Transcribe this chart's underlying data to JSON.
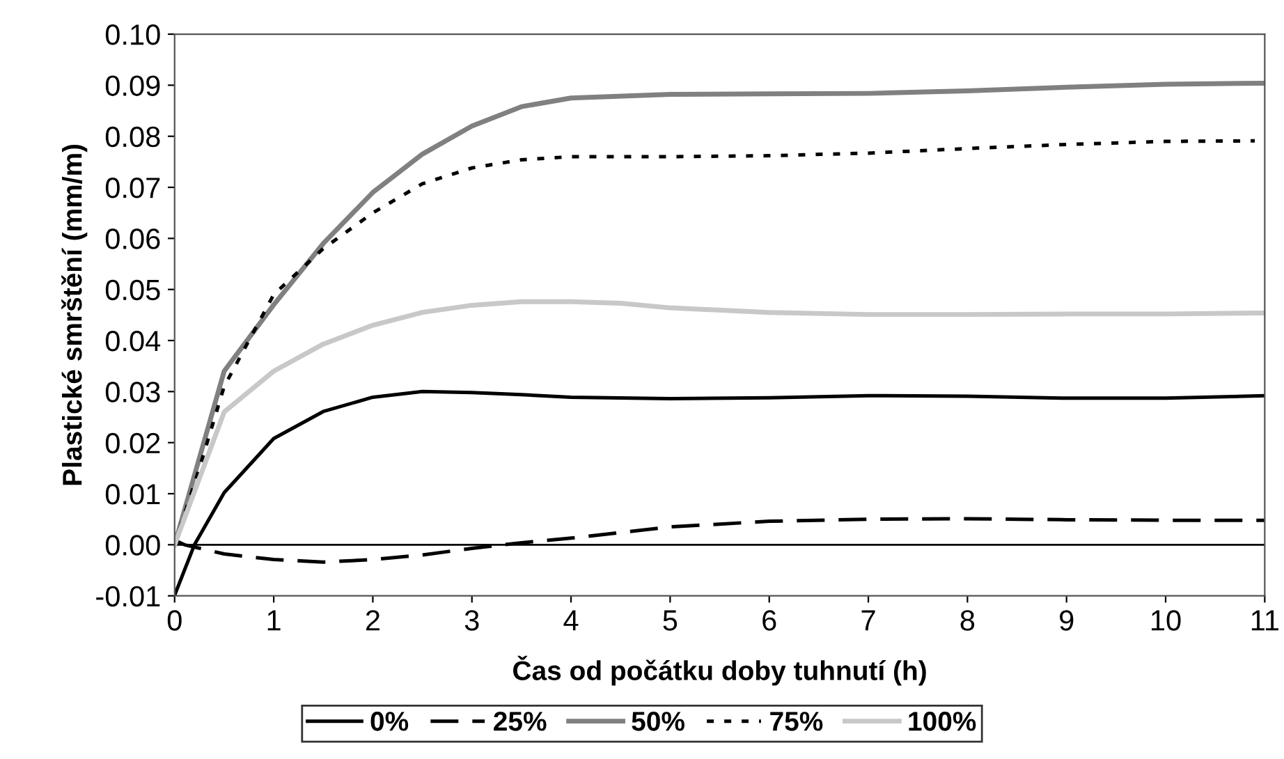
{
  "chart_data": {
    "type": "line",
    "xlabel": "Čas od počátku doby tuhnutí (h)",
    "ylabel": "Plastické smrštění (mm/m)",
    "xlim": [
      0,
      11
    ],
    "xticks": [
      0,
      1,
      2,
      3,
      4,
      5,
      6,
      7,
      8,
      9,
      10,
      11
    ],
    "ylim": [
      -0.01,
      0.1
    ],
    "yticks": [
      {
        "value": -0.01,
        "label": "-0.01"
      },
      {
        "value": 0,
        "label": "0.00"
      },
      {
        "value": 0.01,
        "label": "0.01"
      },
      {
        "value": 0.02,
        "label": "0.02"
      },
      {
        "value": 0.03,
        "label": "0.03"
      },
      {
        "value": 0.04,
        "label": "0.04"
      },
      {
        "value": 0.05,
        "label": "0.05"
      },
      {
        "value": 0.06,
        "label": "0.06"
      },
      {
        "value": 0.07,
        "label": "0.07"
      },
      {
        "value": 0.08,
        "label": "0.08"
      },
      {
        "value": 0.09,
        "label": "0.09"
      },
      {
        "value": 0.1,
        "label": "0.10"
      }
    ],
    "grid": false,
    "legend": "bottom",
    "marker": "none",
    "ref_lines": [
      {
        "axis": "y",
        "value": 0,
        "color": "#000000",
        "line_style": "solid"
      }
    ],
    "series": [
      {
        "name": "0%",
        "color": "#000000",
        "line_style": "solid",
        "x": [
          0,
          0.2,
          0.5,
          1,
          1.5,
          2,
          2.5,
          3,
          3.5,
          4,
          5,
          6,
          7,
          8,
          9,
          10,
          11
        ],
        "values": [
          -0.0099,
          0,
          0.0102,
          0.0208,
          0.0261,
          0.0289,
          0.03,
          0.0298,
          0.0294,
          0.0289,
          0.0286,
          0.0288,
          0.0292,
          0.0291,
          0.0287,
          0.0287,
          0.0292
        ]
      },
      {
        "name": "25%",
        "color": "#000000",
        "line_style": "dashed",
        "x": [
          0,
          0.1,
          0.5,
          1,
          1.5,
          2,
          2.5,
          3,
          3.5,
          4,
          5,
          6,
          7,
          8,
          9,
          10,
          11
        ],
        "values": [
          0.0009,
          0,
          -0.0018,
          -0.0029,
          -0.0034,
          -0.0029,
          -0.002,
          -0.0007,
          0.0004,
          0.0013,
          0.0035,
          0.0046,
          0.005,
          0.0051,
          0.0049,
          0.0048,
          0.0048
        ]
      },
      {
        "name": "50%",
        "color": "#808080",
        "line_style": "solid",
        "x": [
          0,
          0.5,
          1,
          1.5,
          2,
          2.5,
          3,
          3.5,
          4,
          5,
          6,
          7,
          8,
          9,
          10,
          11
        ],
        "values": [
          0,
          0.034,
          0.047,
          0.059,
          0.069,
          0.0765,
          0.082,
          0.0858,
          0.0875,
          0.0882,
          0.0883,
          0.0884,
          0.0889,
          0.0896,
          0.0902,
          0.0904
        ]
      },
      {
        "name": "75%",
        "color": "#000000",
        "line_style": "dotted",
        "x": [
          0,
          0.25,
          0.5,
          0.75,
          1,
          1.5,
          2,
          2.5,
          3,
          3.5,
          4,
          5,
          6,
          7,
          8,
          9,
          10,
          10.9
        ],
        "values": [
          0,
          0.015,
          0.031,
          0.04,
          0.049,
          0.058,
          0.065,
          0.0707,
          0.0738,
          0.0754,
          0.076,
          0.076,
          0.0762,
          0.0767,
          0.0776,
          0.0784,
          0.079,
          0.0791
        ]
      },
      {
        "name": "100%",
        "color": "#c8c8c8",
        "line_style": "solid",
        "x": [
          0,
          0.5,
          1,
          1.5,
          2,
          2.5,
          3,
          3.5,
          4,
          4.5,
          5,
          6,
          7,
          8,
          9,
          10,
          11
        ],
        "values": [
          0,
          0.026,
          0.034,
          0.0393,
          0.043,
          0.0455,
          0.0469,
          0.0476,
          0.0476,
          0.0473,
          0.0464,
          0.0455,
          0.0451,
          0.0451,
          0.0452,
          0.0452,
          0.0454
        ]
      }
    ]
  }
}
